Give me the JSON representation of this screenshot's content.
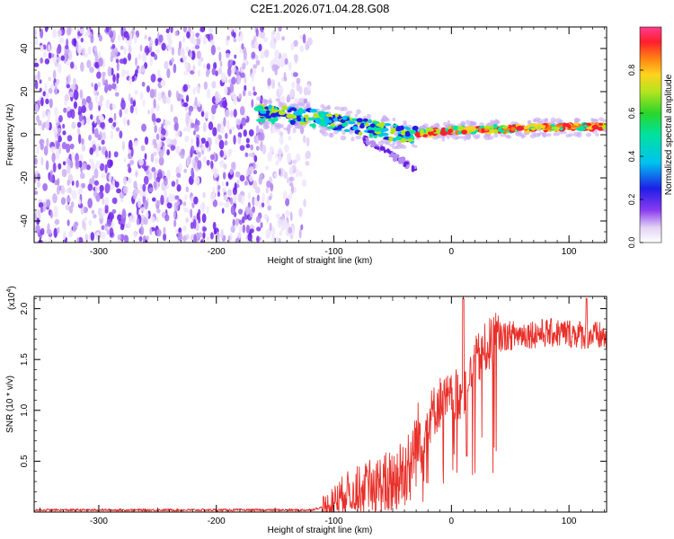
{
  "title": "C2E1.2026.071.04.28.G08",
  "chart_data": [
    {
      "type": "heatmap",
      "name": "spectrogram",
      "xlabel": "Height of straight line (km)",
      "ylabel": "Frequency (Hz)",
      "xlim": [
        -355,
        132
      ],
      "ylim": [
        -50,
        50
      ],
      "xticks": [
        -300,
        -200,
        -100,
        0,
        100
      ],
      "xtick_labels": [
        "-300",
        "-200",
        "-100",
        "0",
        "100"
      ],
      "yticks": [
        -40,
        -20,
        0,
        20,
        40
      ],
      "ytick_labels": [
        "-40",
        "-20",
        "0",
        "20",
        "40"
      ],
      "noise_region_x": [
        -355,
        -135
      ],
      "signal_ridge": {
        "x": [
          -165,
          -140,
          -120,
          -100,
          -80,
          -60,
          -45,
          -35,
          -20,
          0,
          30,
          60,
          100,
          132
        ],
        "freq": [
          10,
          9,
          8,
          6,
          4,
          2,
          0.5,
          0,
          1,
          2,
          2.5,
          3,
          3.5,
          4
        ]
      },
      "colorbar": {
        "label": "Normalized spectral amplitude",
        "range": [
          0.0,
          1.0
        ],
        "ticks": [
          0.0,
          0.2,
          0.4,
          0.6,
          0.8
        ],
        "tick_labels": [
          "0.0",
          "0.2",
          "0.4",
          "0.6",
          "0.8"
        ]
      }
    },
    {
      "type": "line",
      "name": "snr",
      "xlabel": "Height of straight line (km)",
      "ylabel": "SNR (10 * v/v)",
      "scale_label": "(x10",
      "scale_exp": "4",
      "scale_close": ")",
      "xlim": [
        -355,
        132
      ],
      "ylim": [
        0.0,
        2.12
      ],
      "xticks": [
        -300,
        -200,
        -100,
        0,
        100
      ],
      "xtick_labels": [
        "-300",
        "-200",
        "-100",
        "0",
        "100"
      ],
      "yticks": [
        0.5,
        1.0,
        1.5,
        2.0
      ],
      "ytick_labels": [
        "0.5",
        "1.0",
        "1.5",
        "2.0"
      ],
      "series": [
        {
          "name": "SNR",
          "color": "#e8302a",
          "trend_x": [
            -355,
            -120,
            -105,
            -90,
            -70,
            -50,
            -40,
            -30,
            -20,
            -10,
            0,
            10,
            20,
            30,
            40,
            60,
            80,
            100,
            132
          ],
          "trend_y": [
            0.02,
            0.02,
            0.06,
            0.2,
            0.25,
            0.3,
            0.42,
            0.65,
            0.9,
            1.08,
            1.1,
            1.2,
            1.45,
            1.62,
            1.72,
            1.75,
            1.76,
            1.76,
            1.72
          ],
          "peaks": [
            [
              10,
              2.1
            ],
            [
              15,
              1.25
            ],
            [
              13,
              0.55
            ],
            [
              115,
              2.1
            ]
          ]
        }
      ]
    }
  ]
}
